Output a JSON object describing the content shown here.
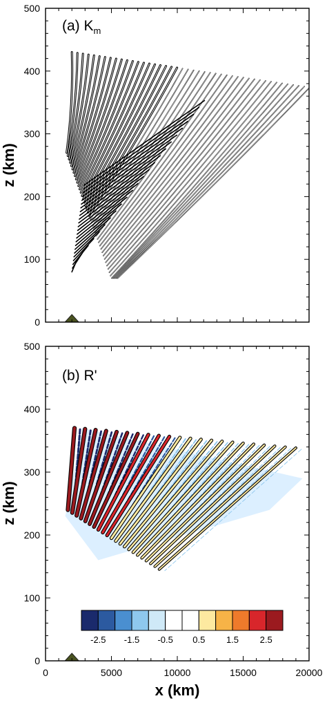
{
  "chart_data": [
    {
      "type": "contour",
      "panel_label": "(a) K",
      "panel_label_sub": "m",
      "ylabel": "z (km)",
      "xlim": [
        0,
        20000
      ],
      "ylim": [
        0,
        500
      ],
      "y_ticks": [
        0,
        100,
        200,
        300,
        400,
        500
      ],
      "x_ticks": [
        0,
        5000,
        10000,
        15000,
        20000
      ],
      "mountain_x": 2000,
      "contours": {
        "color": "#000000",
        "family": "filled-ellipses",
        "centers": [
          [
            2500,
            420
          ],
          [
            3000,
            418
          ],
          [
            3500,
            415
          ],
          [
            4000,
            412
          ],
          [
            4500,
            408
          ],
          [
            5000,
            405
          ],
          [
            5500,
            402
          ],
          [
            6000,
            398
          ],
          [
            6500,
            395
          ],
          [
            7000,
            392
          ],
          [
            7500,
            389
          ],
          [
            8000,
            386
          ],
          [
            8500,
            383
          ],
          [
            9000,
            380
          ],
          [
            9500,
            377
          ],
          [
            10000,
            374
          ],
          [
            10500,
            371
          ],
          [
            11000,
            368
          ],
          [
            11500,
            365
          ],
          [
            12000,
            362
          ],
          [
            12500,
            359
          ],
          [
            13000,
            356
          ],
          [
            13500,
            353
          ],
          [
            14000,
            350
          ],
          [
            15000,
            360
          ],
          [
            16000,
            372
          ],
          [
            17000,
            380
          ],
          [
            18000,
            390
          ],
          [
            19000,
            400
          ]
        ]
      }
    },
    {
      "type": "contour-filled",
      "panel_label": "(b) R'",
      "ylabel": "z (km)",
      "xlabel": "x (km)",
      "xlim": [
        0,
        20000
      ],
      "ylim": [
        0,
        500
      ],
      "y_ticks": [
        0,
        100,
        200,
        300,
        400,
        500
      ],
      "x_ticks": [
        0,
        5000,
        10000,
        15000,
        20000
      ],
      "x_tick_labels": [
        "0",
        "5000",
        "10000",
        "15000",
        "20000"
      ],
      "mountain_x": 2000,
      "colorbar": {
        "levels": [
          -3,
          -2.5,
          -2,
          -1.5,
          -1,
          -0.5,
          0,
          0.5,
          1,
          1.5,
          2,
          2.5,
          3
        ],
        "labels": [
          "-2.5",
          "-1.5",
          "-0.5",
          "0.5",
          "1.5",
          "2.5"
        ],
        "colors": [
          "#1a2a6c",
          "#2c5aa0",
          "#4a8fd0",
          "#8ec8ee",
          "#cfe9f7",
          "#ffffff",
          "#ffffff",
          "#fde9a0",
          "#f7b347",
          "#ee7a2b",
          "#d8262b",
          "#9b1a1f"
        ]
      }
    }
  ]
}
